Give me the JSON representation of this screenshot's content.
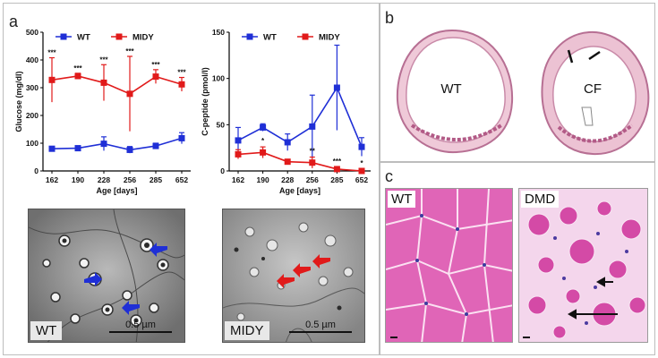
{
  "panels": {
    "a": "a",
    "b": "b",
    "c": "c"
  },
  "chart_data": [
    {
      "type": "line",
      "title": "",
      "xlabel": "Age [days]",
      "ylabel": "Glucose (mg/dl)",
      "categories": [
        "162",
        "190",
        "228",
        "256",
        "285",
        "652"
      ],
      "ylim": [
        0,
        500
      ],
      "yticks": [
        "0",
        "100",
        "200",
        "300",
        "400",
        "500"
      ],
      "legend": [
        "WT",
        "MIDY"
      ],
      "series": [
        {
          "name": "WT",
          "color": "#1f2fd6",
          "values": [
            80,
            82,
            98,
            76,
            90,
            118
          ],
          "err": [
            8,
            8,
            25,
            12,
            10,
            20
          ]
        },
        {
          "name": "MIDY",
          "color": "#e11a1a",
          "values": [
            328,
            342,
            318,
            278,
            340,
            312
          ],
          "err": [
            80,
            10,
            65,
            135,
            25,
            25
          ]
        }
      ],
      "annotations": [
        "***",
        "***",
        "***",
        "***",
        "***",
        "***"
      ]
    },
    {
      "type": "line",
      "title": "",
      "xlabel": "Age [days]",
      "ylabel": "C-peptide (pmol/l)",
      "categories": [
        "162",
        "190",
        "228",
        "256",
        "285",
        "652"
      ],
      "ylim": [
        0,
        150
      ],
      "yticks": [
        "0",
        "50",
        "100",
        "150"
      ],
      "legend": [
        "WT",
        "MIDY"
      ],
      "series": [
        {
          "name": "WT",
          "color": "#1f2fd6",
          "values": [
            33,
            47,
            31,
            48,
            90,
            26
          ],
          "err": [
            14,
            4,
            9,
            34,
            46,
            10
          ]
        },
        {
          "name": "MIDY",
          "color": "#e11a1a",
          "values": [
            18,
            20,
            10,
            9,
            2,
            0
          ],
          "err": [
            5,
            6,
            2,
            6,
            2,
            2
          ]
        }
      ],
      "annotations": [
        "",
        "*",
        "",
        "**",
        "***",
        "*"
      ]
    }
  ],
  "em_images": [
    {
      "label": "WT",
      "scale": "0.5 µm"
    },
    {
      "label": "MIDY",
      "scale": "0.5 µm"
    }
  ],
  "panel_b": {
    "left_label": "WT",
    "right_label": "CF"
  },
  "panel_c": {
    "left_label": "WT",
    "right_label": "DMD"
  }
}
